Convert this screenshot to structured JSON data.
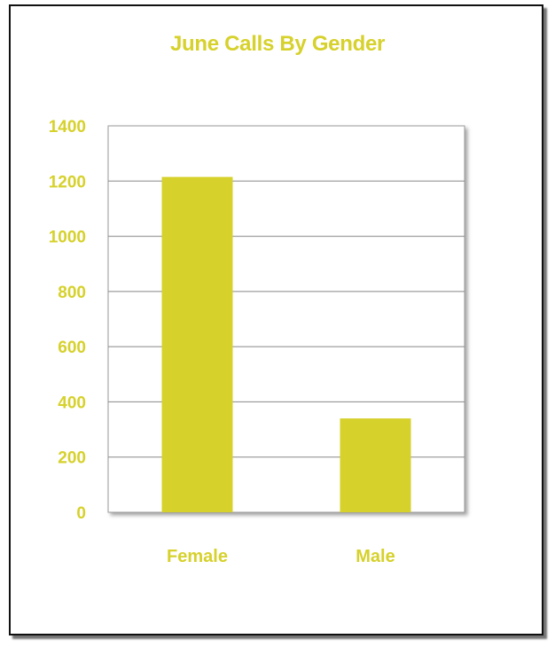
{
  "colors": {
    "accent": "#D6D12B",
    "bar": "#D6D12B",
    "gridline": "#888888",
    "frame": "#111111"
  },
  "chart_data": {
    "type": "bar",
    "title": "June Calls By Gender",
    "categories": [
      "Female",
      "Male"
    ],
    "values": [
      1215,
      340
    ],
    "ylim": [
      0,
      1400
    ],
    "yticks": [
      0,
      200,
      400,
      600,
      800,
      1000,
      1200,
      1400
    ],
    "xlabel": "",
    "ylabel": "",
    "grid": true,
    "legend": "none"
  }
}
